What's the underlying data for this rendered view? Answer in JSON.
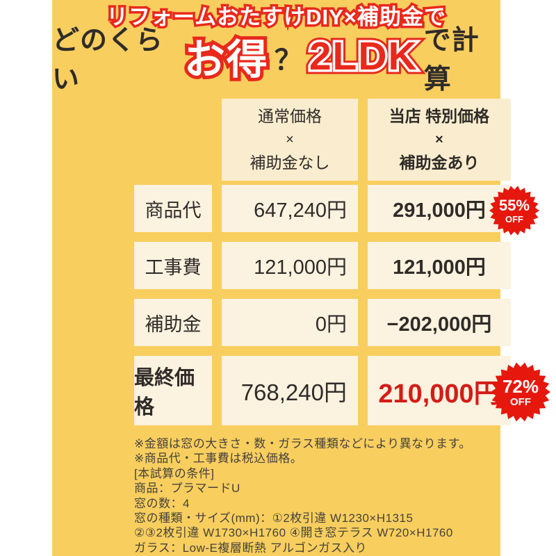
{
  "header": {
    "line1": "リフォームおたすけDIY×補助金で",
    "line2": {
      "prefix": "どのくらい",
      "highlight": "お得",
      "question": "？",
      "plan": "2LDK",
      "suffix": "で計算"
    }
  },
  "table": {
    "col_normal": [
      "通常価格",
      "×",
      "補助金なし"
    ],
    "col_special": [
      "当店 特別価格",
      "×",
      "補助金あり"
    ],
    "rows": [
      {
        "label": "商品代",
        "normal": "647,240円",
        "special": "291,000円",
        "badge": {
          "pct": "55%",
          "off": "OFF"
        }
      },
      {
        "label": "工事費",
        "normal": "121,000円",
        "special": "121,000円"
      },
      {
        "label": "補助金",
        "normal": "0円",
        "special": "−202,000円"
      },
      {
        "label": "最終価格",
        "normal": "768,240円",
        "special": "210,000円",
        "badge": {
          "pct": "72%",
          "off": "OFF"
        }
      }
    ]
  },
  "notes": [
    "※金額は窓の大きさ・数・ガラス種類などにより異なります。",
    "※商品代・工事費は税込価格。",
    "[本試算の条件]",
    "商品：プラマードU",
    "窓の数：4",
    "窓の種類・サイズ(mm)：①2枚引違 W1230×H1315",
    "②③2枚引違 W1730×H1760 ④開き窓テラス W720×H1760",
    "ガラス：Low-E複層断熱 アルゴンガス入り"
  ],
  "colors": {
    "bg_yellow": "#f8ce5f",
    "white": "#ffffff",
    "cream_header": "#faedcf",
    "cream_cell": "#fbf2df",
    "ink": "#2f2b28",
    "red": "#e8291c",
    "badge_red": "#e6170d",
    "price_red": "#d41c17",
    "note_ink": "#46423a"
  }
}
